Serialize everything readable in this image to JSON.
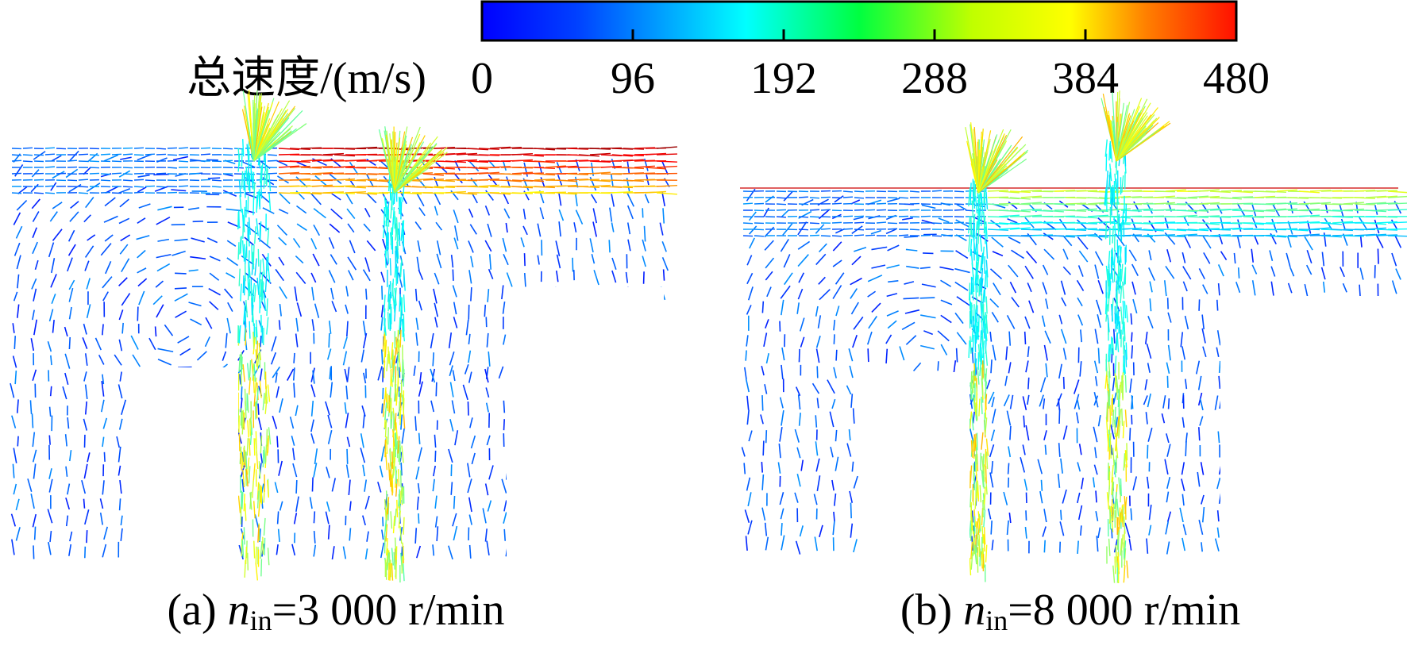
{
  "colorbar": {
    "label": "总速度/(m/s)",
    "range": [
      0,
      480
    ],
    "ticks": [
      0,
      96,
      192,
      288,
      384,
      480
    ]
  },
  "panels": [
    {
      "caption": {
        "prefix": "(a) ",
        "variable": "n",
        "subscript": "in",
        "rest": "=3 000 r/min"
      }
    },
    {
      "caption": {
        "prefix": "(b) ",
        "variable": "n",
        "subscript": "in",
        "rest": "=8 000 r/min"
      }
    }
  ]
}
